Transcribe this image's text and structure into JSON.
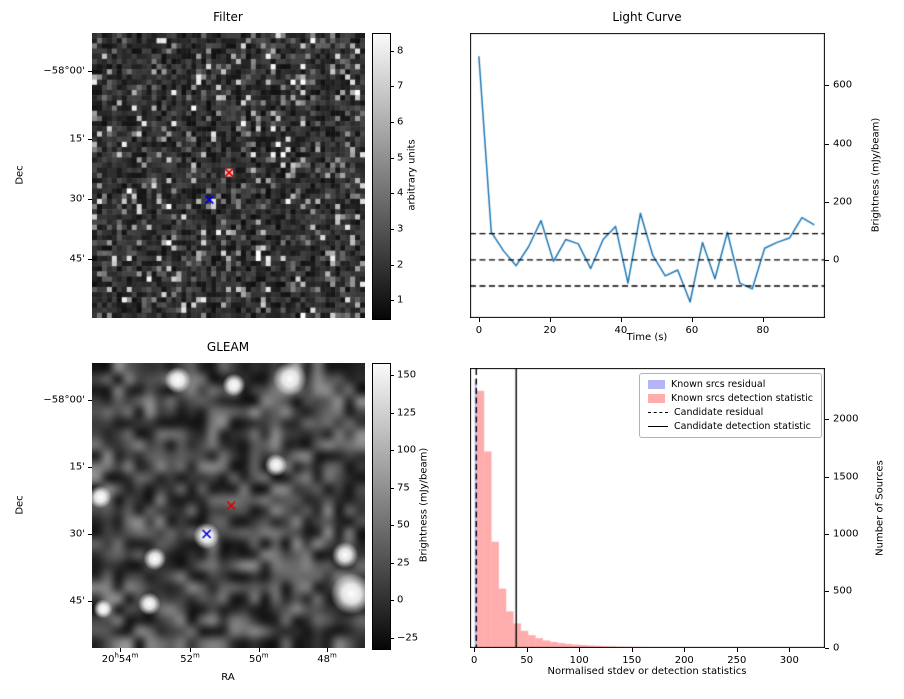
{
  "figure": {
    "background": "#ffffff"
  },
  "colors": {
    "line": "#1f77b4",
    "known_residual_fill": "rgba(90,90,235,0.45)",
    "known_detstat_fill": "rgba(255,90,90,0.5)",
    "candidate_line": "#000000",
    "marker_red": "#dd0000",
    "marker_blue": "#0000dd"
  },
  "chart_data": [
    {
      "type": "heatmap",
      "title": "Filter",
      "ylabel": "Dec",
      "yticks": [
        {
          "label": "−58°00'",
          "f": 0.133
        },
        {
          "label": "15'",
          "f": 0.372
        },
        {
          "label": "30'",
          "f": 0.582
        },
        {
          "label": "45'",
          "f": 0.793
        }
      ],
      "colorbar": {
        "label": "arbitrary units",
        "ticks": [
          8,
          7,
          6,
          5,
          4,
          3,
          2,
          1
        ],
        "vmin": 0.5,
        "vmax": 8.5
      },
      "markers": [
        {
          "shape": "x",
          "color": "#dd0000",
          "fx": 0.502,
          "fy": 0.49,
          "halo": true
        },
        {
          "shape": "x",
          "color": "#0000dd",
          "fx": 0.43,
          "fy": 0.585
        }
      ],
      "noise_seed": 42,
      "noise_grid": 55,
      "style": "pixelated grayscale random noise"
    },
    {
      "type": "line",
      "title": "Light Curve",
      "xlabel": "Time (s)",
      "ylabel": "Brightness (mJy/beam)",
      "xlim": [
        -2.5,
        97.5
      ],
      "ylim": [
        -200,
        780
      ],
      "xticks": [
        0,
        20,
        40,
        60,
        80
      ],
      "yticks": [
        0,
        200,
        400,
        600
      ],
      "dashed_hlines": [
        90,
        0,
        -90
      ],
      "x": [
        0,
        3.5,
        7,
        10.5,
        14,
        17.5,
        21,
        24.5,
        28,
        31.5,
        35,
        38.5,
        42,
        45.5,
        49,
        52.5,
        56,
        59.5,
        63,
        66.5,
        70,
        73.5,
        77,
        80.5,
        84,
        87.5,
        91,
        94.5
      ],
      "y": [
        700,
        95,
        30,
        -20,
        45,
        135,
        -5,
        70,
        55,
        -30,
        70,
        115,
        -80,
        160,
        15,
        -55,
        -35,
        -145,
        60,
        -65,
        95,
        -80,
        -100,
        40,
        60,
        75,
        145,
        120
      ]
    },
    {
      "type": "heatmap",
      "title": "GLEAM",
      "xlabel": "RA",
      "ylabel": "Dec",
      "yticks": [
        {
          "label": "−58°00'",
          "f": 0.13
        },
        {
          "label": "15'",
          "f": 0.365
        },
        {
          "label": "30'",
          "f": 0.6
        },
        {
          "label": "45'",
          "f": 0.835
        }
      ],
      "xticks": [
        {
          "label": "20h54m",
          "f": 0.103
        },
        {
          "label": "52m",
          "f": 0.359
        },
        {
          "label": "50m",
          "f": 0.611
        },
        {
          "label": "48m",
          "f": 0.861
        }
      ],
      "colorbar": {
        "label": "Brightness (mJy/beam)",
        "ticks": [
          150,
          125,
          100,
          75,
          50,
          25,
          0,
          -25
        ],
        "vmin": -32,
        "vmax": 158
      },
      "markers": [
        {
          "shape": "x",
          "color": "#dd0000",
          "fx": 0.51,
          "fy": 0.5
        },
        {
          "shape": "x",
          "color": "#0000dd",
          "fx": 0.42,
          "fy": 0.6
        }
      ],
      "blobs": [
        [
          0.315,
          0.06,
          7
        ],
        [
          0.52,
          0.077,
          6
        ],
        [
          0.725,
          0.055,
          9
        ],
        [
          0.674,
          0.358,
          6
        ],
        [
          0.03,
          0.47,
          6
        ],
        [
          0.42,
          0.607,
          7
        ],
        [
          0.23,
          0.687,
          6
        ],
        [
          0.927,
          0.674,
          7
        ],
        [
          0.95,
          0.81,
          11
        ],
        [
          0.21,
          0.845,
          6
        ],
        [
          0.04,
          0.863,
          5
        ]
      ],
      "noise_seed": 7,
      "noise_grid": 26,
      "style": "smooth blurred grayscale noise with bright sources"
    },
    {
      "type": "histogram",
      "xlabel": "Normalised stdev or detection statistics",
      "ylabel": "Number of Sources",
      "xlim": [
        -4,
        334
      ],
      "ylim": [
        0,
        2450
      ],
      "xticks": [
        0,
        50,
        100,
        150,
        200,
        250,
        300
      ],
      "yticks": [
        0,
        500,
        1000,
        1500,
        2000
      ],
      "series": [
        {
          "name": "Known srcs residual",
          "fill": "rgba(90,90,235,0.45)",
          "bin_start": 0.5,
          "bin_width": 2.0,
          "counts": [
            2350
          ]
        },
        {
          "name": "Known srcs detection statistic",
          "fill": "rgba(255,90,90,0.5)",
          "bin_start": 2.5,
          "bin_width": 7.0,
          "counts": [
            2250,
            1720,
            930,
            520,
            320,
            215,
            150,
            112,
            86,
            66,
            53,
            43,
            36,
            30,
            26,
            22,
            19,
            16,
            14,
            12,
            11,
            10,
            9,
            8,
            7,
            7,
            6,
            6,
            5,
            5,
            4,
            4,
            4,
            3,
            3,
            3,
            3,
            2,
            2,
            2,
            2,
            2,
            2,
            1,
            1,
            1,
            1,
            1
          ]
        }
      ],
      "vlines": [
        {
          "x": 2.0,
          "style": "dashed",
          "label": "Candidate residual"
        },
        {
          "x": 40.0,
          "style": "solid",
          "label": "Candidate detection statistic"
        }
      ],
      "legend": [
        {
          "label": "Known srcs residual",
          "swatch": "patch",
          "color": "rgba(90,90,235,0.45)"
        },
        {
          "label": "Known srcs detection statistic",
          "swatch": "patch",
          "color": "rgba(255,90,90,0.5)"
        },
        {
          "label": "Candidate residual",
          "swatch": "dashed-line",
          "color": "#000000"
        },
        {
          "label": "Candidate detection statistic",
          "swatch": "solid-line",
          "color": "#000000"
        }
      ]
    }
  ]
}
